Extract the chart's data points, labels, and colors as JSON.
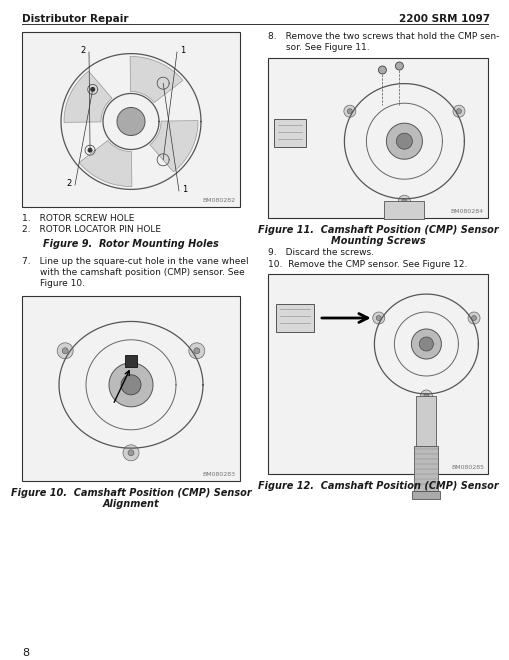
{
  "page_width": 5.1,
  "page_height": 6.6,
  "dpi": 100,
  "bg_color": "#ffffff",
  "header_left": "Distributor Repair",
  "header_right": "2200 SRM 1097",
  "header_font_size": 7.5,
  "footer_page_num": "8",
  "footer_font_size": 8,
  "fig9_caption_items": [
    "1.  ROTOR SCREW HOLE",
    "2.  ROTOR LOCATOR PIN HOLE"
  ],
  "fig9_title": "Figure 9.  Rotor Mounting Holes",
  "fig10_title_line1": "Figure 10.  Camshaft Position (CMP) Sensor",
  "fig10_title_line2": "Alignment",
  "fig11_title_line1": "Figure 11.  Camshaft Position (CMP) Sensor",
  "fig11_title_line2": "Mounting Screws",
  "fig12_title": "Figure 12.  Camshaft Position (CMP) Sensor",
  "step7_text": "7.  Line up the square-cut hole in the vane wheel\n    with the camshaft position (CMP) sensor. See\n    Figure 10.",
  "step8_text": "8.  Remove the two screws that hold the CMP sen-\n    sor. See Figure 11.",
  "step9_text": "9.  Discard the screws.",
  "step10_text": "10.  Remove the CMP sensor. See Figure 12.",
  "text_font_size": 6.5,
  "caption_font_size": 6.5,
  "figure_title_font_size": 7.0,
  "id_font_size": 4.5,
  "text_color": "#1a1a1a",
  "fig_bg": "#e8e8e8",
  "fig_border": "#333333",
  "fig9_id": "BM080282",
  "fig10_id": "BM080283",
  "fig11_id": "BM080284",
  "fig12_id": "BM080285"
}
